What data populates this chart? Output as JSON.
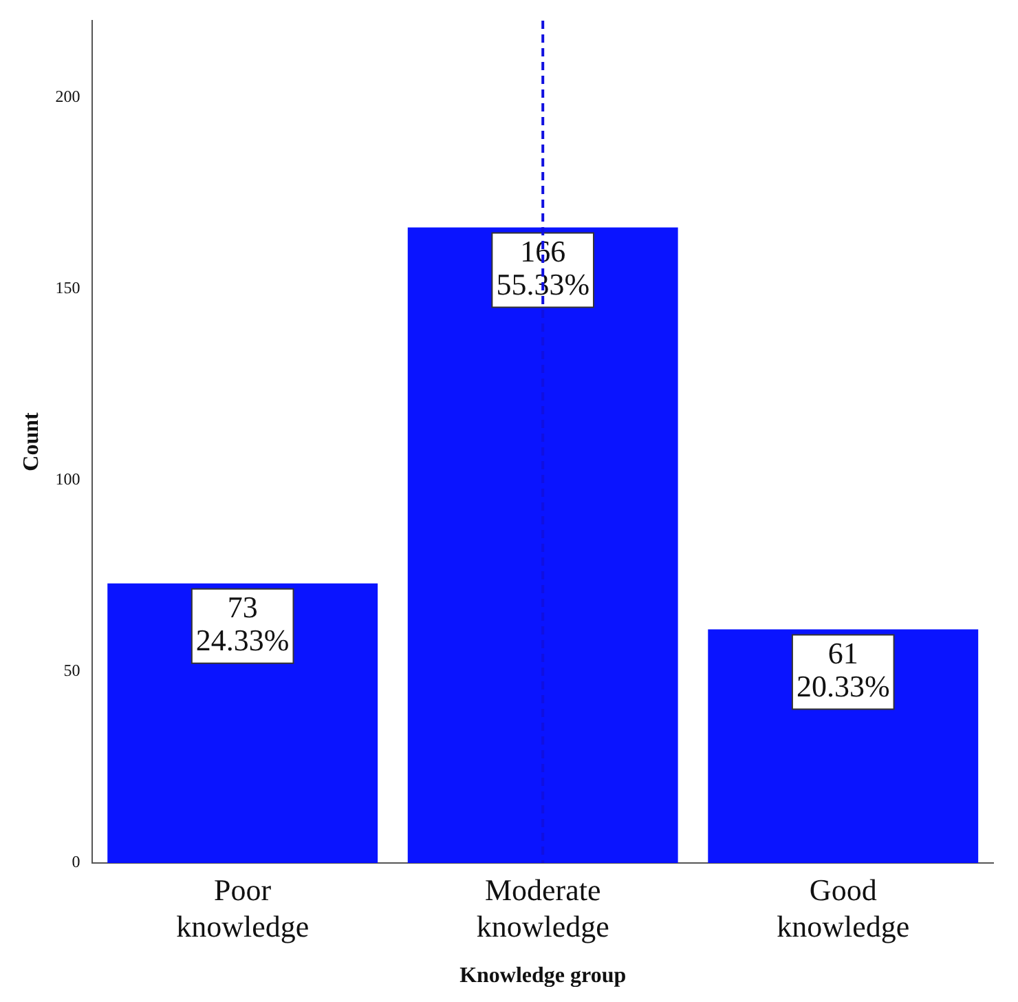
{
  "chart_data": {
    "type": "bar",
    "xlabel": "Knowledge group",
    "ylabel": "Count",
    "categories": [
      "Poor knowledge",
      "Moderate knowledge",
      "Good knowledge"
    ],
    "values": [
      73,
      166,
      61
    ],
    "color": "#0a14ff",
    "value_labels": [
      "73\n24.33%",
      "166\n55.33%",
      "61\n20.33%"
    ],
    "ylim": [
      0,
      220
    ],
    "yticks": [
      0,
      50,
      100,
      150,
      200
    ],
    "grid": false,
    "legend": false,
    "ref_lines": [
      {
        "axis": "x",
        "value": "Moderate knowledge",
        "color": "#1010e0",
        "line_style": "dashed"
      }
    ]
  }
}
